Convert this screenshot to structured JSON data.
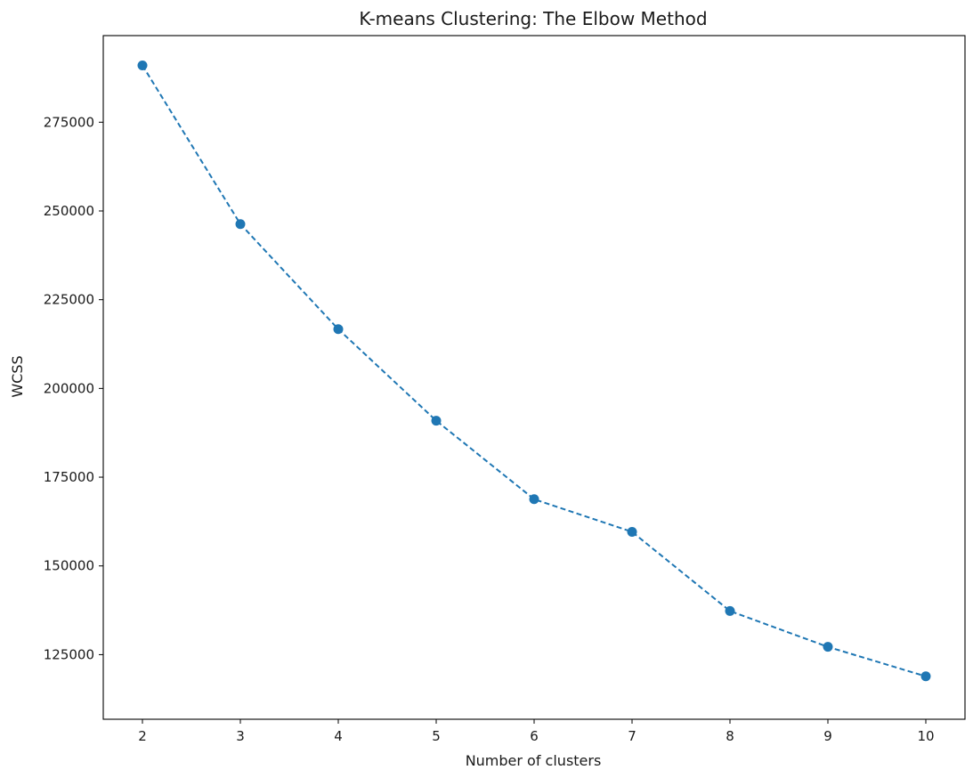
{
  "chart_data": {
    "type": "line",
    "title": "K-means Clustering: The Elbow Method",
    "xlabel": "Number of clusters",
    "ylabel": "WCSS",
    "x": [
      2,
      3,
      4,
      5,
      6,
      7,
      8,
      9,
      10
    ],
    "series": [
      {
        "values": [
          291000,
          246300,
          216700,
          190900,
          168800,
          159600,
          137300,
          127200,
          118900
        ],
        "line_style": "dashed",
        "marker": "circle",
        "color": "#1f77b4"
      }
    ],
    "xlim": [
      1.6,
      10.4
    ],
    "ylim": [
      106800,
      299400
    ],
    "xticks": [
      2,
      3,
      4,
      5,
      6,
      7,
      8,
      9,
      10
    ],
    "yticks": [
      125000,
      150000,
      175000,
      200000,
      225000,
      250000,
      275000
    ],
    "grid": false,
    "legend": false
  }
}
